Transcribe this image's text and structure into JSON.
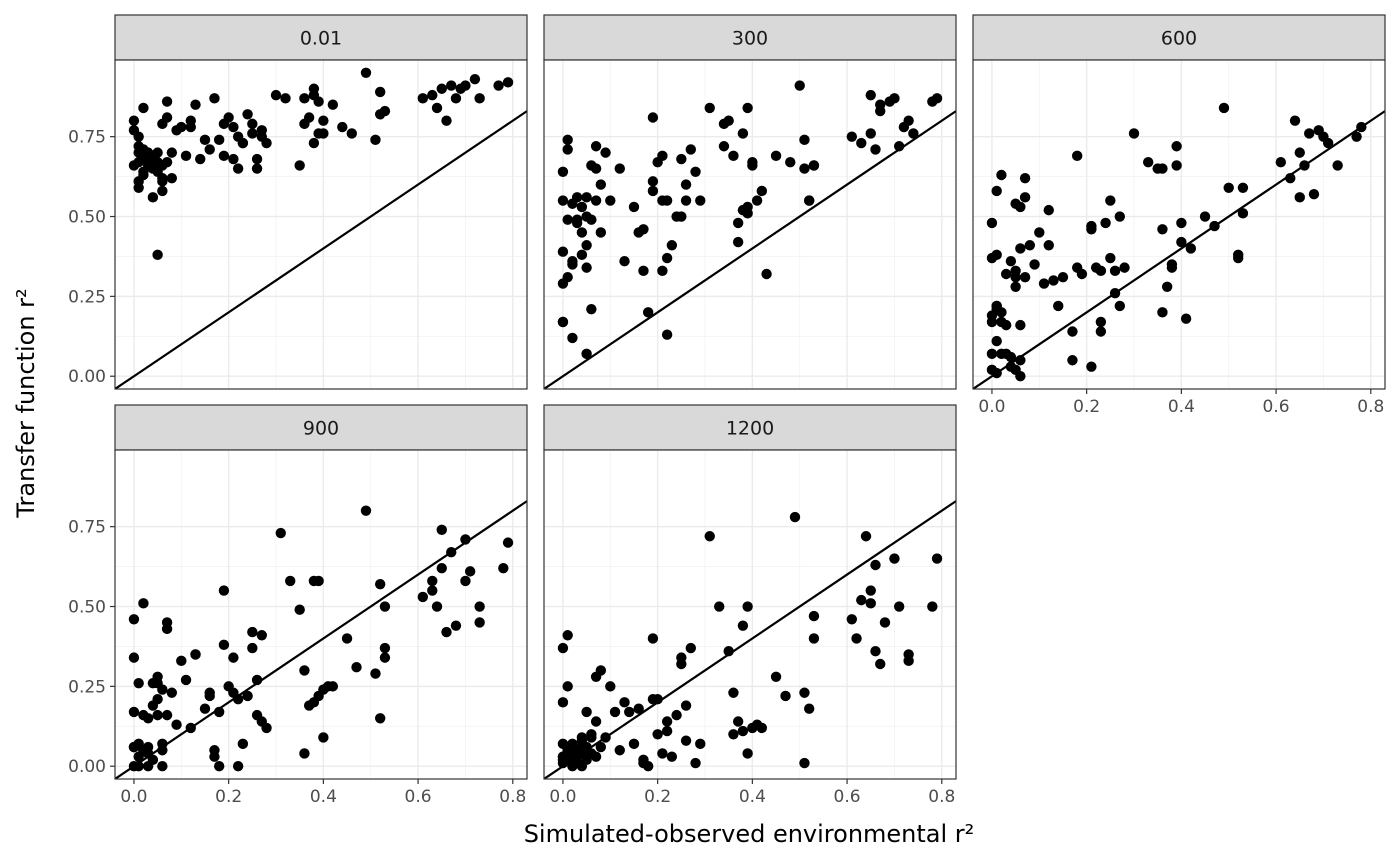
{
  "chart_data": {
    "type": "scatter",
    "layout": "faceted 3 columns x 2 rows",
    "xlabel": "Simulated-observed environmental r²",
    "ylabel": "Transfer function r²",
    "xlim": [
      -0.04,
      0.83
    ],
    "ylim": [
      -0.04,
      0.99
    ],
    "x_ticks": [
      0.0,
      0.2,
      0.4,
      0.6,
      0.8
    ],
    "x_tick_labels": [
      "0.0",
      "0.2",
      "0.4",
      "0.6",
      "0.8"
    ],
    "y_ticks": [
      0.0,
      0.25,
      0.5,
      0.75
    ],
    "y_tick_labels": [
      "0.00",
      "0.25",
      "0.50",
      "0.75"
    ],
    "grid": true,
    "reference_line": {
      "intercept": 0,
      "slope": 1,
      "color": "#000000"
    },
    "point_color": "#000000",
    "strip_color": "#d9d9d9",
    "panels": [
      {
        "label": "0.01",
        "x": [
          0.0,
          0.0,
          0.01,
          0.01,
          0.01,
          0.01,
          0.0,
          0.01,
          0.02,
          0.02,
          0.02,
          0.03,
          0.03,
          0.03,
          0.04,
          0.04,
          0.04,
          0.05,
          0.05,
          0.05,
          0.06,
          0.06,
          0.06,
          0.07,
          0.07,
          0.08,
          0.1,
          0.11,
          0.12,
          0.13,
          0.14,
          0.16,
          0.17,
          0.18,
          0.19,
          0.2,
          0.21,
          0.22,
          0.23,
          0.24,
          0.25,
          0.26,
          0.27,
          0.28,
          0.3,
          0.32,
          0.35,
          0.36,
          0.37,
          0.38,
          0.39,
          0.4,
          0.42,
          0.44,
          0.46,
          0.49,
          0.51,
          0.52,
          0.53,
          0.61,
          0.63,
          0.64,
          0.65,
          0.66,
          0.67,
          0.68,
          0.7,
          0.72,
          0.73,
          0.77,
          0.79,
          0.02,
          0.04,
          0.05,
          0.22,
          0.26,
          0.36,
          0.38,
          0.39,
          0.4,
          0.01,
          0.03,
          0.06,
          0.09,
          0.12,
          0.15,
          0.19,
          0.21,
          0.23,
          0.25,
          0.27,
          0.07,
          0.02,
          0.04,
          0.05,
          0.08,
          0.06,
          0.38,
          0.52,
          0.69
        ],
        "y": [
          0.8,
          0.77,
          0.72,
          0.7,
          0.67,
          0.61,
          0.66,
          0.59,
          0.64,
          0.63,
          0.69,
          0.7,
          0.66,
          0.67,
          0.56,
          0.68,
          0.65,
          0.64,
          0.66,
          0.7,
          0.58,
          0.62,
          0.79,
          0.81,
          0.86,
          0.7,
          0.78,
          0.69,
          0.8,
          0.85,
          0.68,
          0.71,
          0.87,
          0.74,
          0.79,
          0.81,
          0.68,
          0.65,
          0.73,
          0.82,
          0.76,
          0.65,
          0.77,
          0.73,
          0.88,
          0.87,
          0.66,
          0.79,
          0.81,
          0.73,
          0.86,
          0.76,
          0.85,
          0.78,
          0.76,
          0.95,
          0.74,
          0.89,
          0.83,
          0.87,
          0.88,
          0.84,
          0.9,
          0.8,
          0.91,
          0.87,
          0.91,
          0.93,
          0.87,
          0.91,
          0.92,
          0.84,
          0.69,
          0.67,
          0.75,
          0.68,
          0.87,
          0.9,
          0.76,
          0.8,
          0.75,
          0.68,
          0.66,
          0.77,
          0.78,
          0.74,
          0.69,
          0.78,
          0.73,
          0.79,
          0.75,
          0.67,
          0.71,
          0.66,
          0.38,
          0.62,
          0.61,
          0.88,
          0.82,
          0.9
        ]
      },
      {
        "label": "300",
        "x": [
          0.0,
          0.0,
          0.0,
          0.01,
          0.01,
          0.01,
          0.02,
          0.02,
          0.03,
          0.03,
          0.04,
          0.04,
          0.05,
          0.05,
          0.06,
          0.06,
          0.07,
          0.07,
          0.08,
          0.08,
          0.09,
          0.1,
          0.12,
          0.13,
          0.15,
          0.16,
          0.17,
          0.18,
          0.19,
          0.2,
          0.21,
          0.22,
          0.23,
          0.24,
          0.25,
          0.26,
          0.27,
          0.28,
          0.29,
          0.31,
          0.34,
          0.35,
          0.36,
          0.37,
          0.38,
          0.39,
          0.4,
          0.41,
          0.42,
          0.45,
          0.48,
          0.5,
          0.51,
          0.52,
          0.53,
          0.61,
          0.63,
          0.65,
          0.66,
          0.67,
          0.69,
          0.7,
          0.71,
          0.73,
          0.74,
          0.78,
          0.79,
          0.0,
          0.01,
          0.02,
          0.03,
          0.04,
          0.05,
          0.06,
          0.07,
          0.17,
          0.19,
          0.21,
          0.22,
          0.37,
          0.39,
          0.4,
          0.43,
          0.51,
          0.52,
          0.53,
          0.0,
          0.02,
          0.05,
          0.19,
          0.22,
          0.25,
          0.26,
          0.34,
          0.38,
          0.39,
          0.65,
          0.67,
          0.72,
          0.21,
          0.05,
          0.0
        ],
        "y": [
          0.64,
          0.55,
          0.39,
          0.71,
          0.49,
          0.31,
          0.54,
          0.36,
          0.56,
          0.48,
          0.53,
          0.45,
          0.56,
          0.41,
          0.66,
          0.21,
          0.72,
          0.55,
          0.6,
          0.45,
          0.7,
          0.55,
          0.65,
          0.36,
          0.53,
          0.45,
          0.33,
          0.2,
          0.58,
          0.67,
          0.55,
          0.37,
          0.41,
          0.5,
          0.5,
          0.55,
          0.71,
          0.64,
          0.55,
          0.84,
          0.79,
          0.8,
          0.69,
          0.42,
          0.76,
          0.53,
          0.66,
          0.55,
          0.58,
          0.69,
          0.67,
          0.91,
          0.74,
          0.55,
          0.66,
          0.75,
          0.73,
          0.88,
          0.71,
          0.85,
          0.86,
          0.87,
          0.72,
          0.8,
          0.76,
          0.86,
          0.87,
          0.17,
          0.74,
          0.12,
          0.49,
          0.38,
          0.34,
          0.49,
          0.65,
          0.46,
          0.81,
          0.69,
          0.55,
          0.48,
          0.84,
          0.67,
          0.32,
          0.65,
          0.55,
          0.66,
          0.17,
          0.35,
          0.5,
          0.61,
          0.13,
          0.68,
          0.6,
          0.72,
          0.52,
          0.51,
          0.76,
          0.83,
          0.78,
          0.33,
          0.07,
          0.29
        ]
      },
      {
        "label": "600",
        "x": [
          0.0,
          0.0,
          0.0,
          0.0,
          0.0,
          0.01,
          0.01,
          0.01,
          0.01,
          0.01,
          0.02,
          0.02,
          0.03,
          0.03,
          0.04,
          0.04,
          0.05,
          0.05,
          0.05,
          0.06,
          0.06,
          0.06,
          0.07,
          0.07,
          0.08,
          0.1,
          0.11,
          0.12,
          0.13,
          0.15,
          0.17,
          0.18,
          0.19,
          0.21,
          0.22,
          0.23,
          0.24,
          0.25,
          0.26,
          0.27,
          0.28,
          0.3,
          0.33,
          0.35,
          0.36,
          0.38,
          0.39,
          0.4,
          0.41,
          0.42,
          0.45,
          0.47,
          0.5,
          0.52,
          0.53,
          0.61,
          0.63,
          0.64,
          0.65,
          0.66,
          0.67,
          0.68,
          0.7,
          0.71,
          0.73,
          0.77,
          0.78,
          0.01,
          0.02,
          0.03,
          0.04,
          0.05,
          0.06,
          0.07,
          0.09,
          0.12,
          0.17,
          0.18,
          0.21,
          0.23,
          0.26,
          0.27,
          0.36,
          0.37,
          0.38,
          0.39,
          0.4,
          0.52,
          0.53,
          0.0,
          0.01,
          0.02,
          0.05,
          0.06,
          0.14,
          0.21,
          0.23,
          0.25,
          0.36,
          0.49,
          0.65,
          0.69
        ],
        "y": [
          0.48,
          0.37,
          0.19,
          0.07,
          0.02,
          0.58,
          0.38,
          0.22,
          0.11,
          0.01,
          0.63,
          0.2,
          0.32,
          0.16,
          0.36,
          0.03,
          0.33,
          0.28,
          0.54,
          0.4,
          0.16,
          0.05,
          0.31,
          0.62,
          0.41,
          0.45,
          0.29,
          0.52,
          0.3,
          0.31,
          0.14,
          0.69,
          0.32,
          0.47,
          0.34,
          0.14,
          0.48,
          0.55,
          0.33,
          0.5,
          0.34,
          0.76,
          0.67,
          0.65,
          0.46,
          0.35,
          0.66,
          0.48,
          0.18,
          0.4,
          0.5,
          0.47,
          0.59,
          0.38,
          0.59,
          0.67,
          0.62,
          0.8,
          0.56,
          0.66,
          0.76,
          0.57,
          0.75,
          0.73,
          0.66,
          0.75,
          0.78,
          0.21,
          0.17,
          0.07,
          0.06,
          0.02,
          0.0,
          0.56,
          0.35,
          0.41,
          0.05,
          0.34,
          0.03,
          0.17,
          0.26,
          0.22,
          0.2,
          0.28,
          0.34,
          0.72,
          0.42,
          0.37,
          0.51,
          0.17,
          0.22,
          0.07,
          0.31,
          0.53,
          0.22,
          0.46,
          0.33,
          0.37,
          0.65,
          0.84,
          0.7,
          0.77
        ]
      },
      {
        "label": "900",
        "x": [
          0.0,
          0.0,
          0.0,
          0.0,
          0.0,
          0.01,
          0.01,
          0.01,
          0.02,
          0.02,
          0.02,
          0.03,
          0.03,
          0.03,
          0.04,
          0.04,
          0.04,
          0.05,
          0.05,
          0.05,
          0.06,
          0.06,
          0.06,
          0.07,
          0.07,
          0.08,
          0.1,
          0.11,
          0.12,
          0.13,
          0.15,
          0.16,
          0.17,
          0.18,
          0.19,
          0.2,
          0.21,
          0.22,
          0.23,
          0.24,
          0.25,
          0.26,
          0.27,
          0.28,
          0.31,
          0.33,
          0.35,
          0.36,
          0.37,
          0.38,
          0.39,
          0.4,
          0.42,
          0.45,
          0.47,
          0.49,
          0.51,
          0.52,
          0.53,
          0.61,
          0.63,
          0.64,
          0.65,
          0.66,
          0.67,
          0.68,
          0.7,
          0.71,
          0.73,
          0.78,
          0.79,
          0.01,
          0.02,
          0.06,
          0.07,
          0.09,
          0.13,
          0.17,
          0.18,
          0.22,
          0.25,
          0.26,
          0.36,
          0.38,
          0.4,
          0.41,
          0.52,
          0.53,
          0.63,
          0.65,
          0.7,
          0.73,
          0.0,
          0.03,
          0.05,
          0.16,
          0.19,
          0.21,
          0.27,
          0.39,
          0.53
        ],
        "y": [
          0.46,
          0.34,
          0.17,
          0.06,
          0.0,
          0.26,
          0.07,
          0.03,
          0.51,
          0.16,
          0.05,
          0.15,
          0.06,
          0.0,
          0.26,
          0.19,
          0.02,
          0.21,
          0.28,
          0.16,
          0.24,
          0.07,
          0.0,
          0.43,
          0.16,
          0.23,
          0.33,
          0.27,
          0.12,
          0.35,
          0.18,
          0.23,
          0.05,
          0.0,
          0.55,
          0.25,
          0.34,
          0.0,
          0.07,
          0.22,
          0.42,
          0.27,
          0.41,
          0.12,
          0.73,
          0.58,
          0.49,
          0.3,
          0.19,
          0.2,
          0.58,
          0.24,
          0.25,
          0.4,
          0.31,
          0.8,
          0.29,
          0.57,
          0.37,
          0.53,
          0.55,
          0.5,
          0.74,
          0.42,
          0.67,
          0.44,
          0.58,
          0.61,
          0.45,
          0.62,
          0.7,
          0.0,
          0.05,
          0.05,
          0.45,
          0.13,
          0.35,
          0.03,
          0.17,
          0.21,
          0.37,
          0.16,
          0.04,
          0.58,
          0.09,
          0.25,
          0.15,
          0.34,
          0.58,
          0.62,
          0.71,
          0.5,
          0.06,
          0.04,
          0.26,
          0.22,
          0.38,
          0.23,
          0.14,
          0.22,
          0.5
        ]
      },
      {
        "label": "1200",
        "x": [
          0.0,
          0.0,
          0.0,
          0.0,
          0.0,
          0.01,
          0.01,
          0.01,
          0.01,
          0.02,
          0.02,
          0.02,
          0.03,
          0.03,
          0.03,
          0.04,
          0.04,
          0.04,
          0.05,
          0.05,
          0.05,
          0.06,
          0.06,
          0.07,
          0.07,
          0.08,
          0.09,
          0.1,
          0.12,
          0.13,
          0.15,
          0.16,
          0.17,
          0.18,
          0.19,
          0.2,
          0.21,
          0.22,
          0.23,
          0.24,
          0.25,
          0.26,
          0.27,
          0.28,
          0.31,
          0.33,
          0.35,
          0.36,
          0.37,
          0.38,
          0.39,
          0.4,
          0.42,
          0.45,
          0.47,
          0.49,
          0.51,
          0.52,
          0.53,
          0.61,
          0.63,
          0.64,
          0.65,
          0.66,
          0.67,
          0.68,
          0.7,
          0.71,
          0.73,
          0.78,
          0.79,
          0.0,
          0.01,
          0.02,
          0.03,
          0.04,
          0.06,
          0.07,
          0.08,
          0.11,
          0.14,
          0.17,
          0.19,
          0.22,
          0.25,
          0.29,
          0.36,
          0.38,
          0.39,
          0.41,
          0.51,
          0.53,
          0.62,
          0.65,
          0.66,
          0.73,
          0.0,
          0.02,
          0.04,
          0.2,
          0.26
        ],
        "y": [
          0.37,
          0.2,
          0.07,
          0.03,
          0.01,
          0.41,
          0.25,
          0.05,
          0.02,
          0.06,
          0.02,
          0.0,
          0.05,
          0.03,
          0.01,
          0.09,
          0.04,
          0.0,
          0.17,
          0.06,
          0.02,
          0.09,
          0.04,
          0.14,
          0.03,
          0.3,
          0.09,
          0.25,
          0.05,
          0.2,
          0.07,
          0.18,
          0.02,
          0.0,
          0.4,
          0.21,
          0.04,
          0.14,
          0.03,
          0.16,
          0.32,
          0.08,
          0.37,
          0.01,
          0.72,
          0.5,
          0.36,
          0.23,
          0.14,
          0.11,
          0.5,
          0.12,
          0.12,
          0.28,
          0.22,
          0.78,
          0.23,
          0.18,
          0.4,
          0.46,
          0.52,
          0.72,
          0.51,
          0.63,
          0.32,
          0.45,
          0.65,
          0.5,
          0.35,
          0.5,
          0.65,
          0.02,
          0.05,
          0.03,
          0.01,
          0.08,
          0.1,
          0.28,
          0.06,
          0.17,
          0.17,
          0.01,
          0.21,
          0.11,
          0.34,
          0.07,
          0.1,
          0.44,
          0.04,
          0.13,
          0.01,
          0.47,
          0.4,
          0.55,
          0.36,
          0.33,
          0.03,
          0.07,
          0.06,
          0.1,
          0.19
        ]
      }
    ]
  }
}
